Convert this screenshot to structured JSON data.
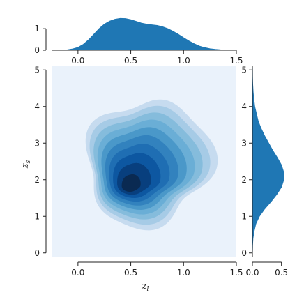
{
  "chart_data": {
    "type": "jointplot-kde",
    "joint": {
      "type": "kde-contour-filled",
      "xlabel": "z",
      "xlabel_sub": "l",
      "ylabel": "z",
      "ylabel_sub": "s",
      "xlim": [
        -0.25,
        1.5
      ],
      "ylim": [
        -0.1,
        5.1
      ],
      "x_ticks": [
        "0.0",
        "0.5",
        "1.0",
        "1.5"
      ],
      "x_tick_values": [
        0.0,
        0.5,
        1.0,
        1.5
      ],
      "y_ticks": [
        "0",
        "1",
        "2",
        "3",
        "4",
        "5"
      ],
      "y_tick_values": [
        0,
        1,
        2,
        3,
        4,
        5
      ],
      "levels": 10,
      "peak": {
        "x": 0.47,
        "y": 1.75
      },
      "secondary_peak": {
        "x": 0.72,
        "y": 2.1
      },
      "outer_extent": {
        "x": [
          0.09,
          1.2
        ],
        "y": [
          0.75,
          4.1
        ]
      },
      "background_color": "#eaf2fb",
      "colormap": [
        "#eaf2fb",
        "#c6dbef",
        "#a6cbe6",
        "#85bcdc",
        "#6aaed6",
        "#4a98c9",
        "#3282be",
        "#1f6eb3",
        "#0d57a1",
        "#083f7e",
        "#0a2a52"
      ]
    },
    "marginal_x": {
      "type": "kde",
      "x_ticks": [
        "0.0",
        "0.5",
        "1.0",
        "1.5"
      ],
      "x_tick_values": [
        0.0,
        0.5,
        1.0,
        1.5
      ],
      "y_ticks": [
        "0",
        "1"
      ],
      "y_tick_values": [
        0,
        1
      ],
      "ylim": [
        0,
        1.75
      ],
      "x": [
        -0.25,
        -0.2,
        -0.15,
        -0.1,
        -0.05,
        0.0,
        0.05,
        0.1,
        0.15,
        0.2,
        0.25,
        0.3,
        0.35,
        0.4,
        0.45,
        0.5,
        0.55,
        0.6,
        0.65,
        0.7,
        0.75,
        0.8,
        0.85,
        0.9,
        0.95,
        1.0,
        1.05,
        1.1,
        1.15,
        1.2,
        1.25,
        1.3,
        1.35,
        1.4,
        1.45,
        1.5
      ],
      "density": [
        0.0,
        0.0,
        0.01,
        0.02,
        0.06,
        0.13,
        0.27,
        0.48,
        0.74,
        1.0,
        1.21,
        1.35,
        1.44,
        1.48,
        1.47,
        1.42,
        1.34,
        1.26,
        1.21,
        1.18,
        1.15,
        1.09,
        1.0,
        0.88,
        0.74,
        0.58,
        0.43,
        0.3,
        0.19,
        0.12,
        0.07,
        0.04,
        0.02,
        0.01,
        0.01,
        0.0
      ],
      "color": "#1f77b4"
    },
    "marginal_y": {
      "type": "kde",
      "x_ticks": [
        "0.0",
        "0.5"
      ],
      "x_tick_values": [
        0.0,
        0.5
      ],
      "xlim": [
        0,
        0.6
      ],
      "y": [
        -0.1,
        0.0,
        0.2,
        0.4,
        0.6,
        0.8,
        1.0,
        1.2,
        1.4,
        1.6,
        1.8,
        2.0,
        2.2,
        2.4,
        2.6,
        2.8,
        3.0,
        3.2,
        3.4,
        3.6,
        3.8,
        4.0,
        4.2,
        4.4,
        4.6,
        4.8,
        5.0,
        5.1
      ],
      "density": [
        0.0,
        0.0,
        0.003,
        0.01,
        0.03,
        0.06,
        0.12,
        0.21,
        0.32,
        0.42,
        0.5,
        0.54,
        0.54,
        0.5,
        0.43,
        0.35,
        0.28,
        0.21,
        0.15,
        0.1,
        0.07,
        0.04,
        0.025,
        0.013,
        0.006,
        0.002,
        0.001,
        0.0
      ],
      "color": "#1f77b4"
    }
  }
}
